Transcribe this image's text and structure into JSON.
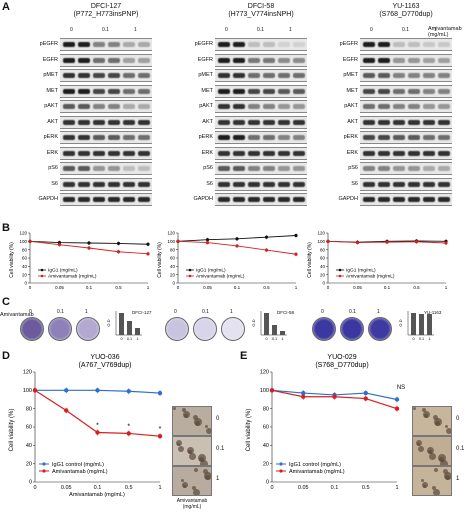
{
  "panels": {
    "A": "A",
    "B": "B",
    "C": "C",
    "D": "D",
    "E": "E"
  },
  "blot_columns": [
    {
      "title1": "DFCI-127",
      "title2": "(P772_H773insPNP)",
      "doses": [
        "0",
        "0.1",
        "1"
      ]
    },
    {
      "title1": "DFCI-58",
      "title2": "(H773_V774insNPH)",
      "doses": [
        "0",
        "0.1",
        "1"
      ]
    },
    {
      "title1": "YU-1163",
      "title2": "(S768_D770dup)",
      "doses": [
        "0",
        "0.1",
        "1"
      ]
    }
  ],
  "blot_treatment_label": "Amivantamab\n(mg/mL)",
  "blot_row_labels": [
    "pEGFR",
    "EGFR",
    "pMET",
    "MET",
    "pAKT",
    "AKT",
    "pERK",
    "ERK",
    "pS6",
    "S6",
    "GAPDH"
  ],
  "panel_b": {
    "ylabel": "Cell viability (%)",
    "xticks": [
      "0",
      "0.05",
      "0.1",
      "0.5",
      "1"
    ],
    "yticks": [
      "0",
      "20",
      "40",
      "60",
      "80",
      "100",
      "120"
    ],
    "legend": [
      "IgG1 (mg/mL)",
      "Amivantamab (mg/mL)"
    ]
  },
  "panel_c": {
    "treatment_label": "Amivantamab",
    "doses": [
      "0",
      "0.1",
      "1"
    ],
    "cell_lines": [
      "DFCI-127",
      "DFCI-58",
      "YU-1163"
    ],
    "bar_ylabel": "O.D",
    "bar_xticks": [
      "0",
      "0.1",
      "1"
    ]
  },
  "panel_d": {
    "title1": "YUO-036",
    "title2": "(A767_V769dup)",
    "ylabel": "Cell viability (%)",
    "xlabel": "Amivantamab (mg/mL)",
    "xticks": [
      "0",
      "0.05",
      "0.1",
      "0.5",
      "1"
    ],
    "yticks": [
      "0",
      "20",
      "40",
      "60",
      "80",
      "100",
      "120"
    ],
    "legend": [
      "IgG1 control (mg/mL)",
      "Amivantamab (mg/mL)"
    ],
    "photo_labels": [
      "0",
      "0.1",
      "1"
    ],
    "photo_axis": "Amivantamab\n(mg/mL)",
    "sig": "*"
  },
  "panel_e": {
    "title1": "YUO-029",
    "title2": "(S768_D770dup)",
    "ylabel": "Cell viability (%)",
    "xlabel": "Amivantamab (mg/mL)",
    "xticks": [
      "0",
      "0.05",
      "0.1",
      "0.5",
      "1"
    ],
    "yticks": [
      "0",
      "20",
      "40",
      "60",
      "80",
      "100",
      "120"
    ],
    "legend": [
      "IgG1 control (mg/mL)",
      "Amivantamab (mg/mL)"
    ],
    "photo_labels": [
      "0",
      "0.1",
      "1"
    ],
    "ns": "NS"
  },
  "colors": {
    "igg": "#2f6fd0",
    "ami": "#d62020",
    "black": "#111111"
  },
  "chart_data": [
    {
      "type": "line",
      "title": "DFCI-127",
      "x": [
        "0",
        "0.05",
        "0.1",
        "0.5",
        "1"
      ],
      "series": [
        {
          "name": "IgG1 (mg/mL)",
          "values": [
            100,
            97,
            96,
            95,
            93
          ]
        },
        {
          "name": "Amivantamab (mg/mL)",
          "values": [
            100,
            92,
            84,
            75,
            70
          ]
        }
      ],
      "ylim": [
        0,
        120
      ]
    },
    {
      "type": "line",
      "title": "DFCI-58",
      "x": [
        "0",
        "0.05",
        "0.1",
        "0.5",
        "1"
      ],
      "series": [
        {
          "name": "IgG1 (mg/mL)",
          "values": [
            100,
            104,
            106,
            110,
            114
          ]
        },
        {
          "name": "Amivantamab (mg/mL)",
          "values": [
            100,
            97,
            89,
            79,
            69
          ]
        }
      ],
      "ylim": [
        0,
        120
      ]
    },
    {
      "type": "line",
      "title": "YU-1163",
      "x": [
        "0",
        "0.05",
        "0.1",
        "0.5",
        "1"
      ],
      "series": [
        {
          "name": "IgG1 (mg/mL)",
          "values": [
            100,
            98,
            100,
            101,
            100
          ]
        },
        {
          "name": "Amivantamab (mg/mL)",
          "values": [
            100,
            97,
            98,
            99,
            96
          ]
        }
      ],
      "ylim": [
        0,
        120
      ]
    },
    {
      "type": "line",
      "title": "YUO-036",
      "x": [
        "0",
        "0.05",
        "0.1",
        "0.5",
        "1"
      ],
      "series": [
        {
          "name": "IgG1 control (mg/mL)",
          "values": [
            100,
            100,
            100,
            99,
            97
          ]
        },
        {
          "name": "Amivantamab (mg/mL)",
          "values": [
            100,
            78,
            54,
            53,
            50
          ]
        }
      ],
      "ylim": [
        0,
        120
      ]
    },
    {
      "type": "line",
      "title": "YUO-029",
      "x": [
        "0",
        "0.05",
        "0.1",
        "0.5",
        "1"
      ],
      "series": [
        {
          "name": "IgG1 control (mg/mL)",
          "values": [
            100,
            97,
            95,
            97,
            90
          ]
        },
        {
          "name": "Amivantamab (mg/mL)",
          "values": [
            100,
            93,
            93,
            91,
            80
          ]
        }
      ],
      "ylim": [
        0,
        120
      ]
    }
  ]
}
